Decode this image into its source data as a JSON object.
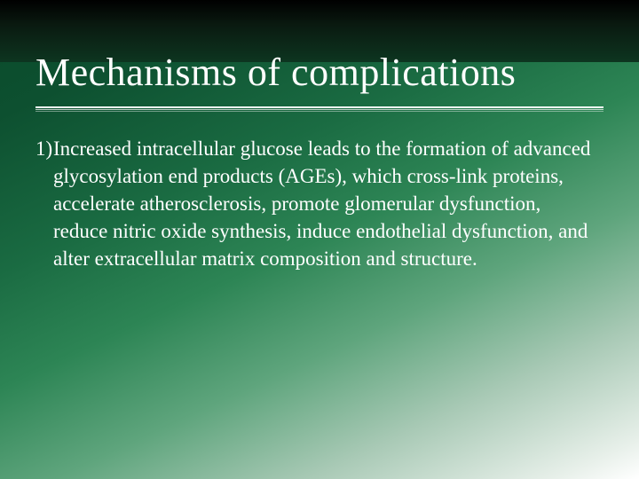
{
  "slide": {
    "title": "Mechanisms of complications",
    "bullet_marker": "1)",
    "body": "Increased intracellular glucose leads to the formation of advanced glycosylation end products (AGEs), which cross-link proteins, accelerate atherosclerosis, promote glomerular dysfunction, reduce nitric oxide synthesis, induce endothelial dysfunction, and alter extracellular matrix composition and structure.",
    "style": {
      "title_color": "#ffffff",
      "title_fontsize": 44,
      "body_color": "#ffffff",
      "body_fontsize": 23,
      "gradient_stops": [
        "#0a4a2a",
        "#0d5030",
        "#1a6b42",
        "#2d8555",
        "#5fa57d",
        "#a8c9b5",
        "#e8f0ea",
        "#ffffff"
      ],
      "header_gradient": [
        "#000000",
        "#0a1a10",
        "#0d3520"
      ],
      "underline_color": "#ffffff",
      "font_family": "Georgia, 'Times New Roman', serif"
    }
  }
}
